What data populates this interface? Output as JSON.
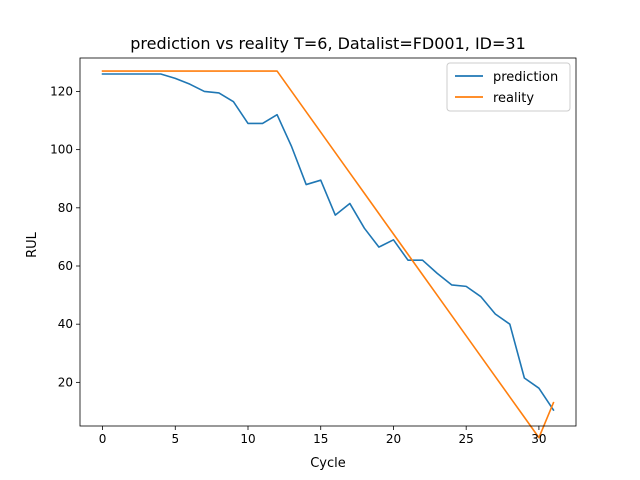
{
  "chart_data": {
    "type": "line",
    "title": "prediction vs reality T=6, Datalist=FD001, ID=31",
    "xlabel": "Cycle",
    "ylabel": "RUL",
    "xlim": [
      -1.55,
      32.55
    ],
    "ylim": [
      5,
      131.5
    ],
    "x_ticks": [
      "0",
      "5",
      "10",
      "15",
      "20",
      "25",
      "30"
    ],
    "y_ticks": [
      "20",
      "40",
      "60",
      "80",
      "100",
      "120"
    ],
    "grid": false,
    "legend_position": "top-right",
    "x": [
      0,
      1,
      2,
      3,
      4,
      5,
      6,
      7,
      8,
      9,
      10,
      11,
      12,
      13,
      14,
      15,
      16,
      17,
      18,
      19,
      20,
      21,
      22,
      23,
      24,
      25,
      26,
      27,
      28,
      29,
      30,
      31
    ],
    "series": [
      {
        "name": "prediction",
        "color": "#1f77b4",
        "values": [
          126,
          126,
          126,
          126,
          126,
          124.5,
          122.5,
          120,
          119.5,
          116.5,
          109,
          109,
          112,
          101,
          88,
          89.5,
          77.5,
          81.5,
          73,
          66.5,
          69,
          62,
          62,
          57.5,
          53.5,
          53,
          49.5,
          43.5,
          40,
          21.5,
          18,
          10.5
        ]
      },
      {
        "name": "reality",
        "color": "#ff7f0e",
        "values": [
          127,
          127,
          127,
          127,
          127,
          127,
          127,
          127,
          127,
          127,
          127,
          127,
          127,
          120,
          113,
          106,
          99,
          92,
          85,
          78,
          71,
          64,
          57,
          50,
          43,
          36,
          29,
          22,
          15,
          8,
          1,
          13
        ]
      }
    ]
  }
}
